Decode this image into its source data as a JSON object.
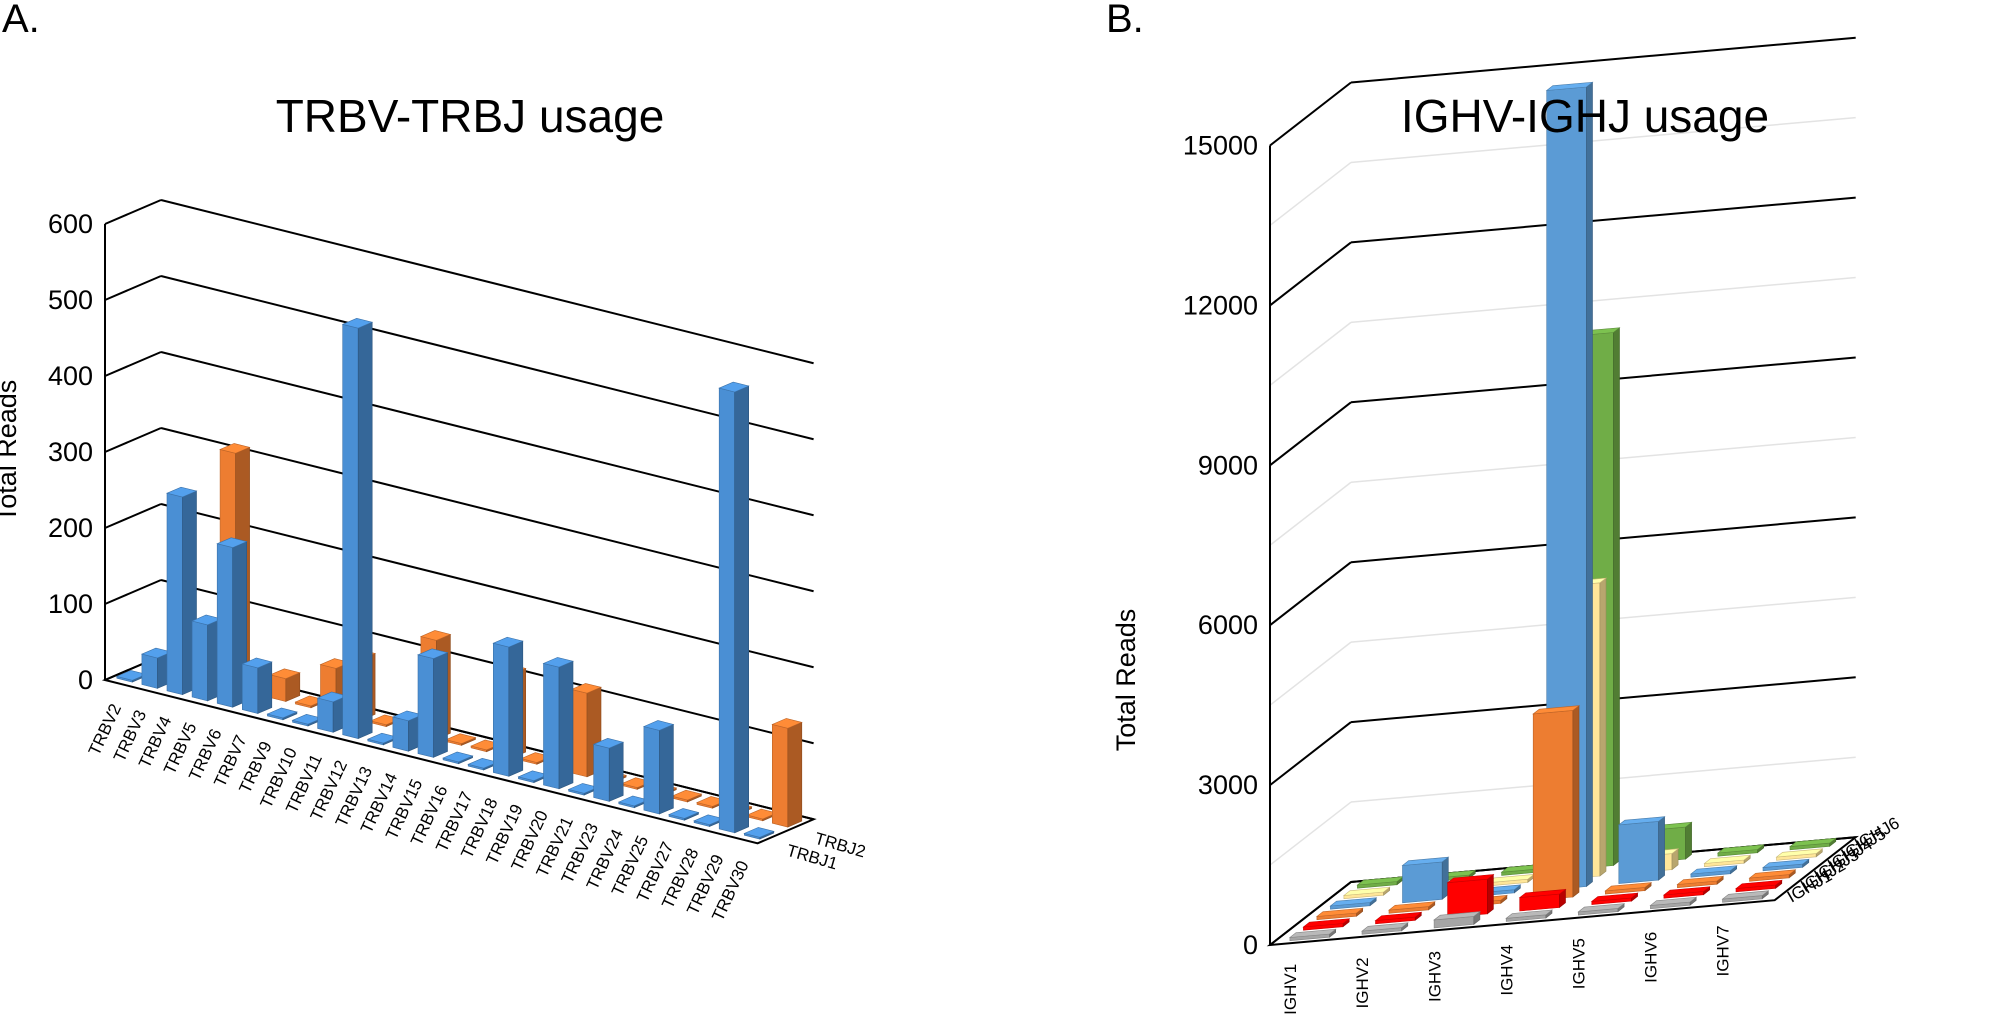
{
  "panels": {
    "a": {
      "label": "A."
    },
    "b": {
      "label": "B."
    }
  },
  "chart_data": [
    {
      "type": "bar",
      "variant": "3d-column",
      "title": "TRBV-TRBJ usage",
      "ylabel": "Total Reads",
      "xlabel": "",
      "ylim": [
        0,
        600
      ],
      "yticks": [
        0,
        100,
        200,
        300,
        400,
        500,
        600
      ],
      "grid": true,
      "categories": [
        "TRBV2",
        "TRBV3",
        "TRBV4",
        "TRBV5",
        "TRBV6",
        "TRBV7",
        "TRBV9",
        "TRBV10",
        "TRBV11",
        "TRBV12",
        "TRBV13",
        "TRBV14",
        "TRBV15",
        "TRBV16",
        "TRBV17",
        "TRBV18",
        "TRBV19",
        "TRBV20",
        "TRBV21",
        "TRBV23",
        "TRBV24",
        "TRBV25",
        "TRBV27",
        "TRBV28",
        "TRBV29",
        "TRBV30"
      ],
      "series": [
        {
          "name": "TRBJ1",
          "color": "#4a8fd4",
          "values": [
            0,
            40,
            260,
            100,
            210,
            60,
            0,
            0,
            40,
            540,
            0,
            40,
            130,
            0,
            0,
            170,
            0,
            160,
            0,
            70,
            0,
            110,
            0,
            0,
            580,
            0
          ]
        },
        {
          "name": "TRBJ2",
          "color": "#ed7d31",
          "values": [
            0,
            0,
            0,
            310,
            0,
            30,
            0,
            60,
            80,
            0,
            0,
            130,
            0,
            0,
            110,
            0,
            0,
            110,
            0,
            0,
            0,
            0,
            0,
            0,
            0,
            130
          ]
        }
      ]
    },
    {
      "type": "bar",
      "variant": "3d-column",
      "title": "IGHV-IGHJ usage",
      "ylabel": "Total Reads",
      "xlabel": "",
      "ylim": [
        0,
        15000
      ],
      "yticks": [
        0,
        3000,
        6000,
        9000,
        12000,
        15000
      ],
      "grid": true,
      "categories": [
        "IGHV1",
        "IGHV2",
        "IGHV3",
        "IGHV4",
        "IGHV5",
        "IGHV6",
        "IGHV7"
      ],
      "series": [
        {
          "name": "IGHJ1",
          "color": "#a5a5a5",
          "values": [
            0,
            0,
            150,
            0,
            0,
            0,
            0
          ]
        },
        {
          "name": "IGHJ2",
          "color": "#ff0000",
          "values": [
            0,
            0,
            650,
            250,
            0,
            0,
            0
          ]
        },
        {
          "name": "IGHJ3",
          "color": "#ed7d31",
          "values": [
            0,
            0,
            0,
            3500,
            0,
            0,
            0
          ]
        },
        {
          "name": "IGHJ4",
          "color": "#5b9bd5",
          "values": [
            0,
            700,
            0,
            15000,
            1100,
            0,
            0
          ]
        },
        {
          "name": "IGHJ5",
          "color": "#ffe699",
          "values": [
            0,
            0,
            0,
            5500,
            300,
            0,
            0
          ]
        },
        {
          "name": "IGHJ6",
          "color": "#70ad47",
          "values": [
            0,
            0,
            0,
            10000,
            600,
            0,
            0
          ]
        }
      ]
    }
  ]
}
